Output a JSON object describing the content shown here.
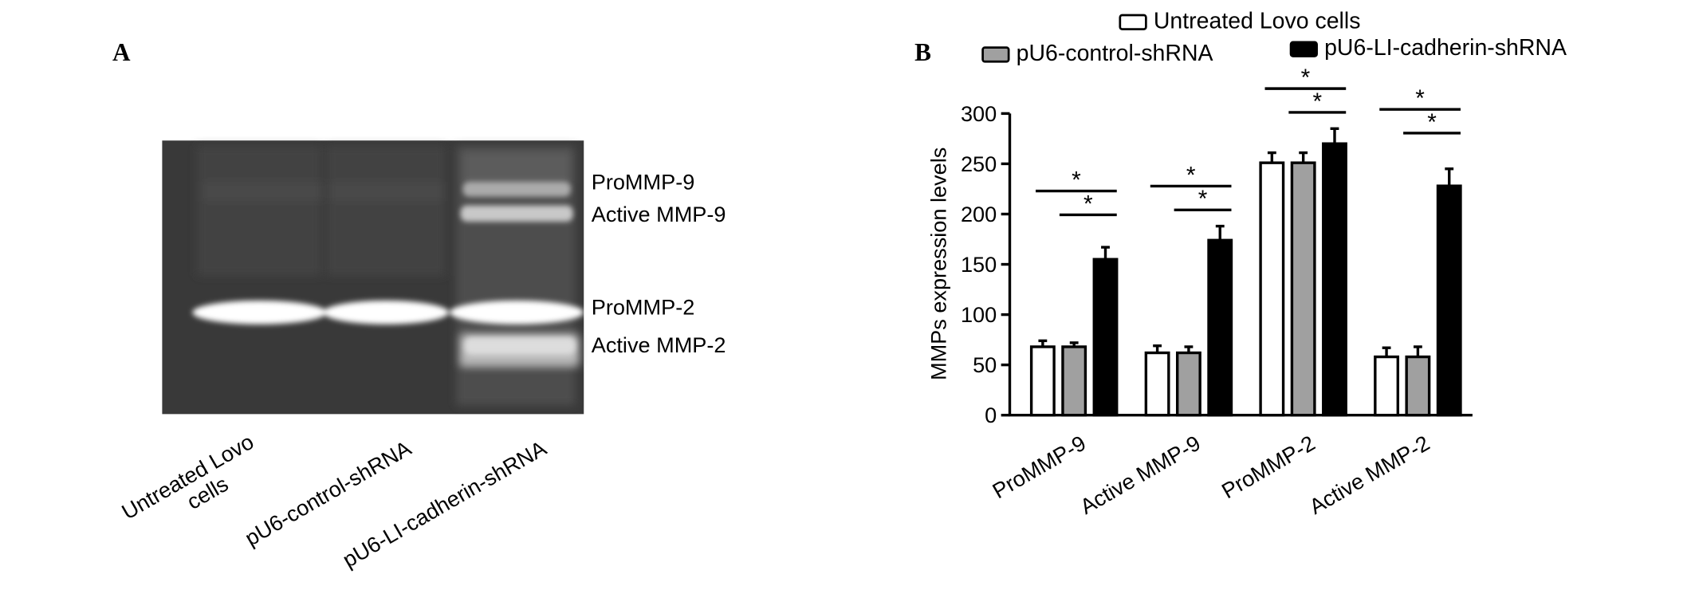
{
  "panel_a": {
    "letter": "A",
    "band_labels": [
      "ProMMP-9",
      "Active MMP-9",
      "ProMMP-2",
      "Active MMP-2"
    ],
    "lane_labels": [
      "Untreated Lovo cells",
      "pU6-control-shRNA",
      "pU6-LI-cadherin-shRNA"
    ],
    "lane_label_lines": [
      [
        "Untreated Lovo",
        "cells"
      ],
      [
        "pU6-control-shRNA"
      ],
      [
        "pU6-LI-cadherin-shRNA"
      ]
    ]
  },
  "panel_b": {
    "letter": "B"
  },
  "chart_data": {
    "type": "bar",
    "title": "",
    "xlabel": "",
    "ylabel": "MMPs expression levels",
    "ylim": [
      0,
      300
    ],
    "yticks": [
      0,
      50,
      100,
      150,
      200,
      250,
      300
    ],
    "categories": [
      "ProMMP-9",
      "Active MMP-9",
      "ProMMP-2",
      "Active MMP-2"
    ],
    "legend_position": "top",
    "series": [
      {
        "name": "Untreated Lovo cells",
        "color": "#ffffff",
        "values": [
          68,
          62,
          251,
          58
        ],
        "errors": [
          6,
          7,
          10,
          9
        ]
      },
      {
        "name": "pU6-control-shRNA",
        "color": "#a0a0a0",
        "values": [
          68,
          62,
          251,
          58
        ],
        "errors": [
          4,
          6,
          10,
          10
        ]
      },
      {
        "name": "pU6-LI-cadherin-shRNA",
        "color": "#000000",
        "values": [
          155,
          174,
          270,
          228
        ],
        "errors": [
          12,
          14,
          15,
          17
        ]
      }
    ],
    "significance": {
      "marker": "*",
      "comparisons_per_category": [
        "Untreated Lovo cells vs pU6-LI-cadherin-shRNA",
        "pU6-control-shRNA vs pU6-LI-cadherin-shRNA"
      ]
    }
  }
}
